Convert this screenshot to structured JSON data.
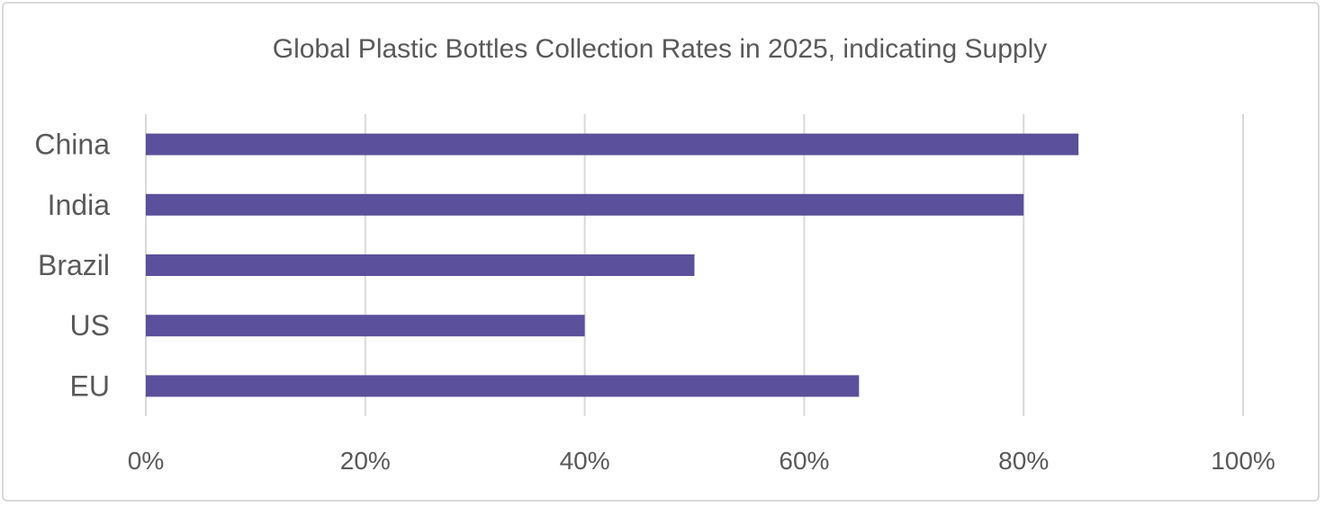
{
  "chart_data": {
    "type": "bar",
    "orientation": "horizontal",
    "title": "Global Plastic Bottles Collection Rates in 2025, indicating Supply",
    "categories": [
      "China",
      "India",
      "Brazil",
      "US",
      "EU"
    ],
    "values": [
      0.85,
      0.8,
      0.5,
      0.4,
      0.65
    ],
    "xlim": [
      0,
      1
    ],
    "x_ticks": [
      0,
      0.2,
      0.4,
      0.6,
      0.8,
      1.0
    ],
    "x_tick_labels": [
      "0%",
      "20%",
      "40%",
      "60%",
      "80%",
      "100%"
    ],
    "grid": "vertical",
    "legend": "none",
    "xlabel": "",
    "ylabel": "",
    "bar_color": "#5b509b"
  }
}
